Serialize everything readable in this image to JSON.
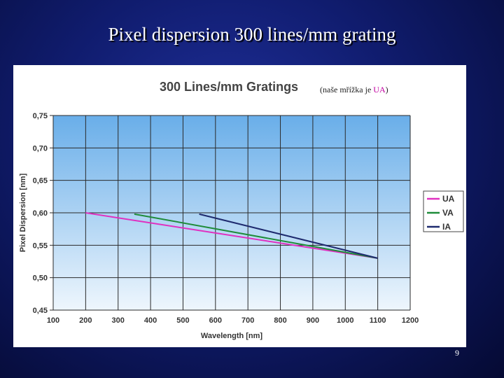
{
  "slide": {
    "title": "Pixel dispersion 300 lines/mm grating",
    "page_number": "9"
  },
  "note": {
    "prefix": "(naše mřížka je ",
    "highlight": "UA",
    "suffix": ")"
  },
  "colors": {
    "UA": "#e030c0",
    "VA": "#1f8c3a",
    "IA": "#1e2a6e"
  },
  "chart_data": {
    "type": "line",
    "title": "300 Lines/mm Gratings",
    "xlabel": "Wavelength [nm]",
    "ylabel": "Pixel Dispersion [nm]",
    "xlim": [
      100,
      1200
    ],
    "ylim": [
      0.45,
      0.75
    ],
    "xticks": [
      "100",
      "200",
      "300",
      "400",
      "500",
      "600",
      "700",
      "800",
      "900",
      "1000",
      "1100",
      "1200"
    ],
    "yticks": [
      "0,45",
      "0,50",
      "0,55",
      "0,60",
      "0,65",
      "0,70",
      "0,75"
    ],
    "grid": true,
    "legend_position": "right",
    "series": [
      {
        "name": "UA",
        "x": [
          200,
          1100
        ],
        "y": [
          0.6,
          0.53
        ]
      },
      {
        "name": "VA",
        "x": [
          350,
          1100
        ],
        "y": [
          0.598,
          0.53
        ]
      },
      {
        "name": "IA",
        "x": [
          550,
          1100
        ],
        "y": [
          0.598,
          0.53
        ]
      }
    ]
  }
}
